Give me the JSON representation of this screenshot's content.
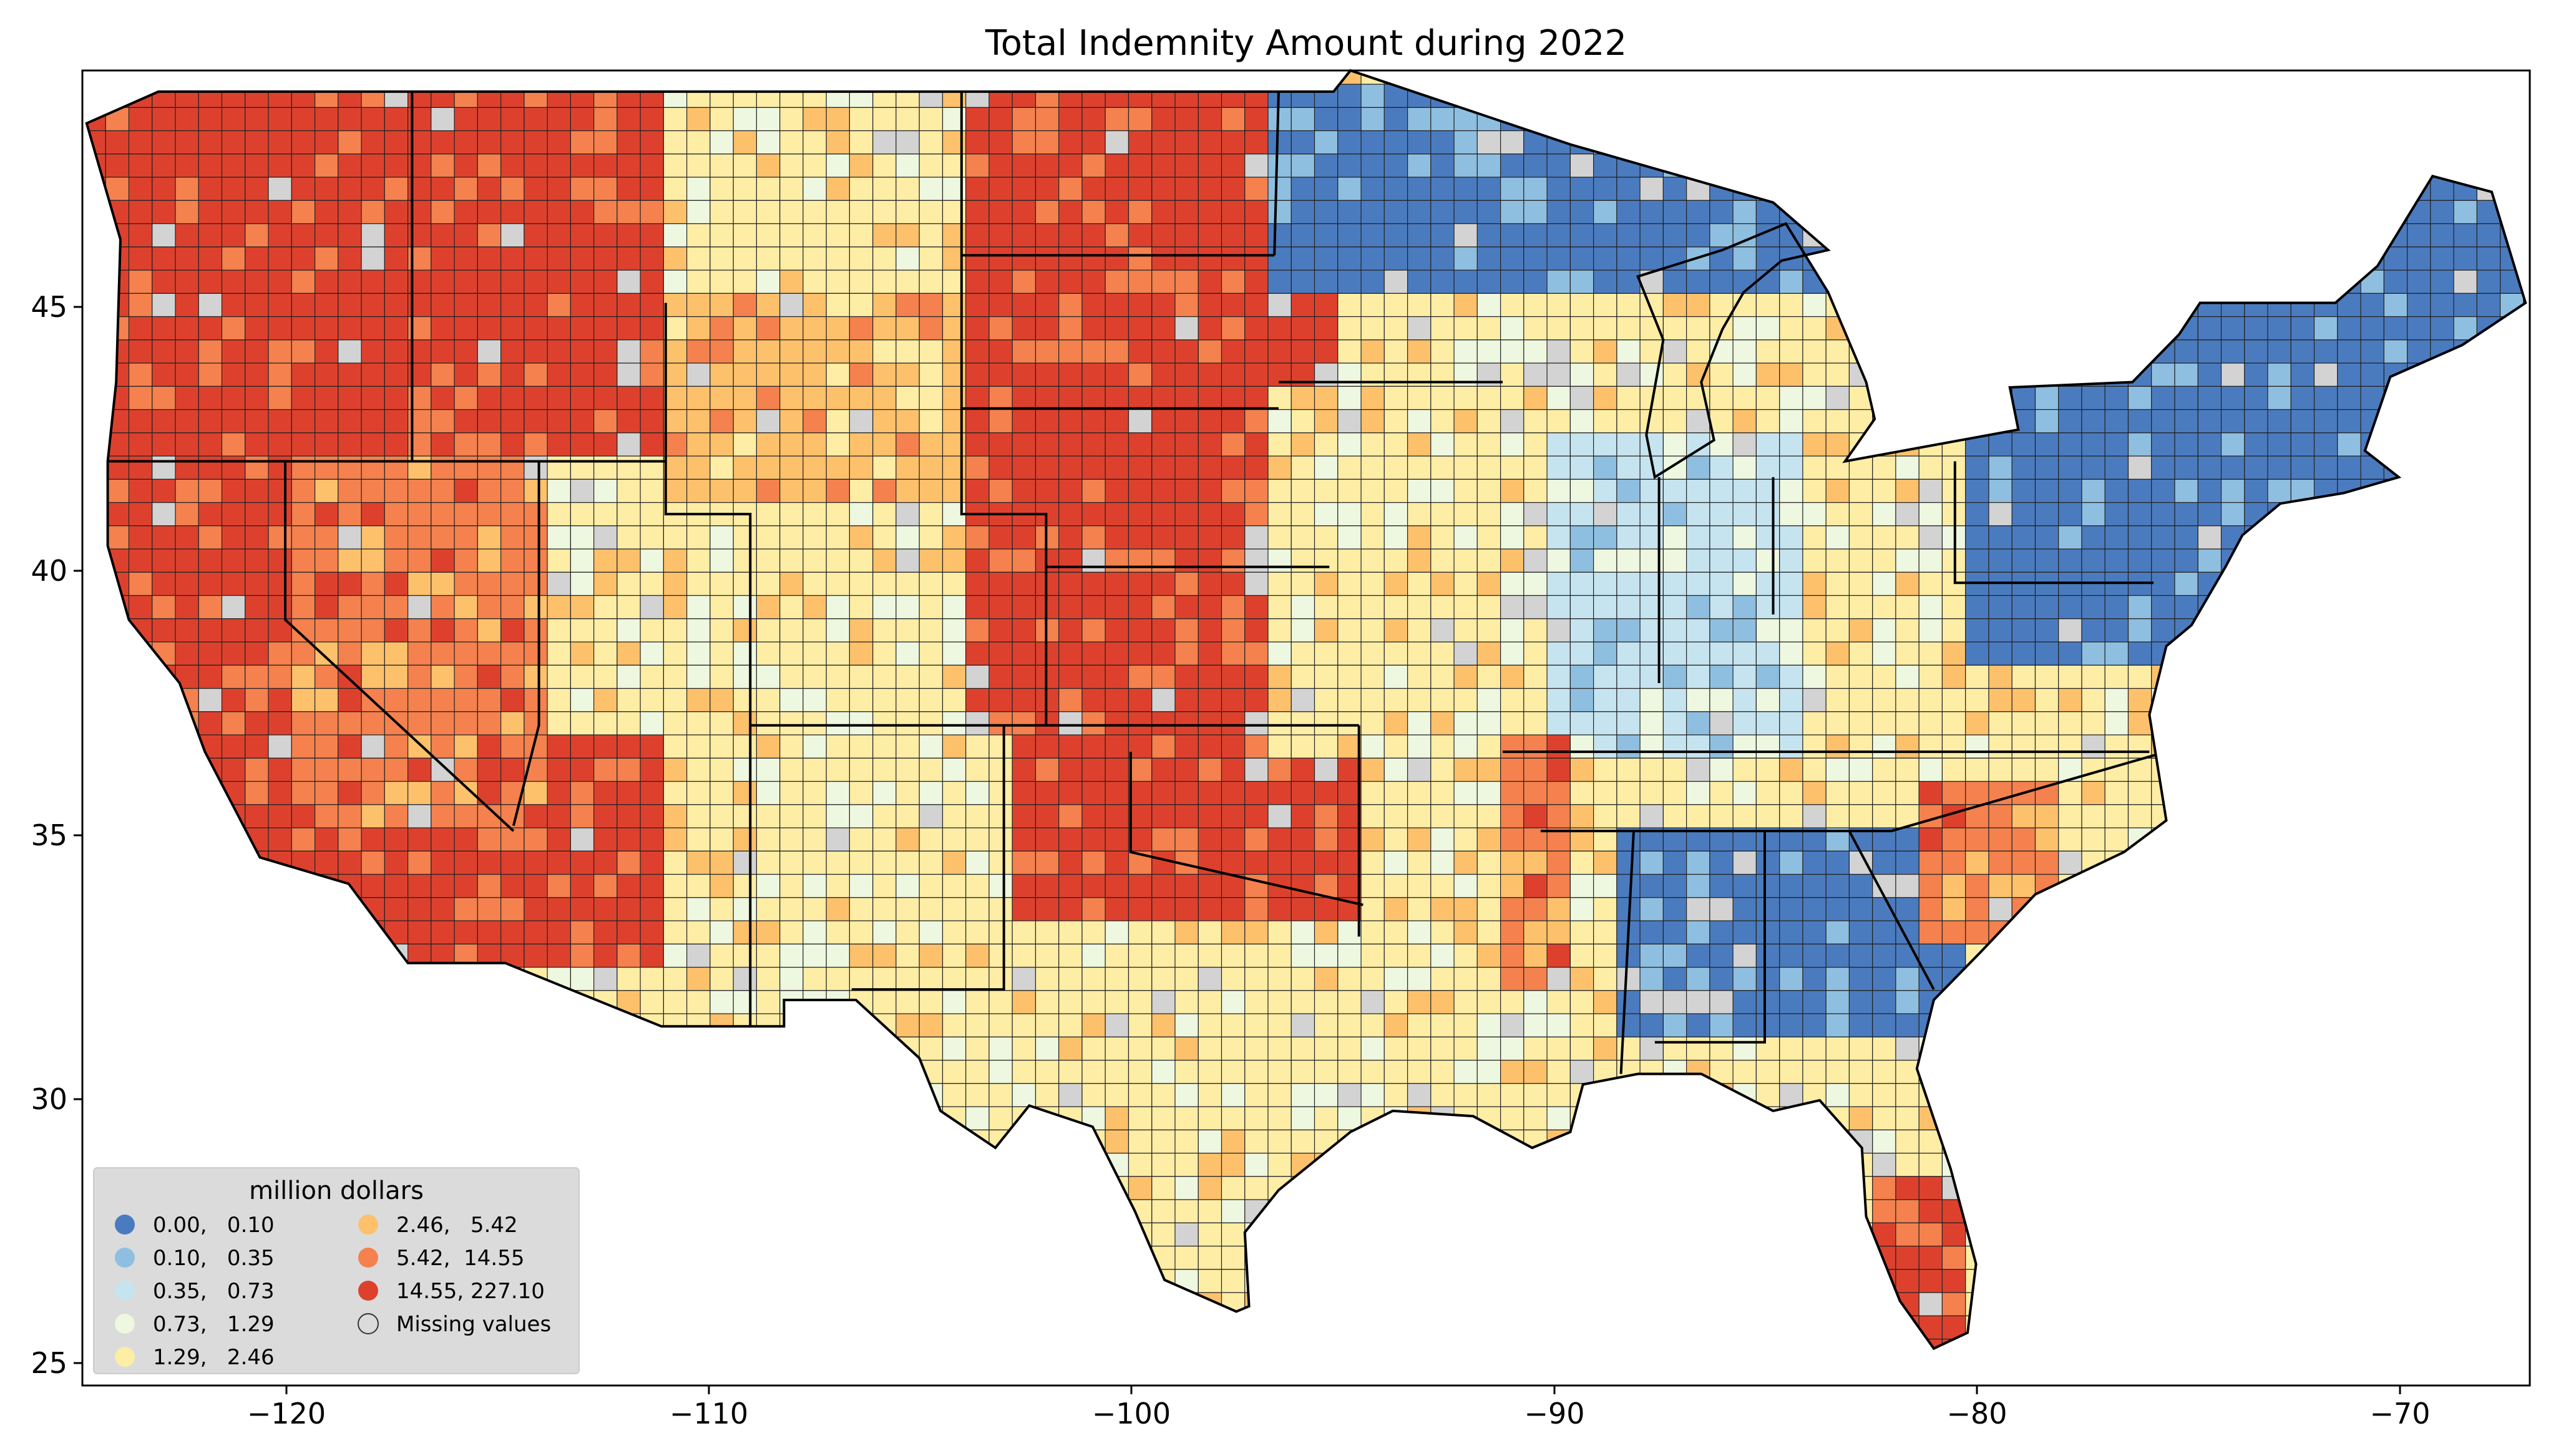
{
  "title": "Total Indemnity Amount during 2022",
  "axes": {
    "x_ticks": [
      "−120",
      "−110",
      "−100",
      "−90",
      "−80",
      "−70"
    ],
    "y_ticks": [
      "25",
      "30",
      "35",
      "40",
      "45"
    ]
  },
  "legend": {
    "title": "million dollars",
    "placement": "lower-left",
    "items": [
      {
        "label": "0.00,   0.10",
        "color": "#4b7bbf"
      },
      {
        "label": "0.10,   0.35",
        "color": "#8fbfe0"
      },
      {
        "label": "0.35,   0.73",
        "color": "#c6e4f0"
      },
      {
        "label": "0.73,   1.29",
        "color": "#eef7df"
      },
      {
        "label": "1.29,   2.46",
        "color": "#fdeda5"
      },
      {
        "label": "2.46,   5.42",
        "color": "#fdc16c"
      },
      {
        "label": "5.42,  14.55",
        "color": "#f4814e"
      },
      {
        "label": "14.55, 227.10",
        "color": "#dd412e"
      },
      {
        "label": "Missing values",
        "color": "#d3d3d3"
      }
    ]
  },
  "chart_data": {
    "type": "choropleth",
    "title": "Total Indemnity Amount during 2022",
    "xlim": [
      -124.8,
      -66.9
    ],
    "ylim": [
      24.5,
      49.4
    ],
    "x_ticks": [
      -120,
      -110,
      -100,
      -90,
      -80,
      -70
    ],
    "y_ticks": [
      25,
      30,
      35,
      40,
      45
    ],
    "legend_title": "million dollars",
    "bins": [
      {
        "min": 0.0,
        "max": 0.1,
        "color": "#4b7bbf"
      },
      {
        "min": 0.1,
        "max": 0.35,
        "color": "#8fbfe0"
      },
      {
        "min": 0.35,
        "max": 0.73,
        "color": "#c6e4f0"
      },
      {
        "min": 0.73,
        "max": 1.29,
        "color": "#eef7df"
      },
      {
        "min": 1.29,
        "max": 2.46,
        "color": "#fdeda5"
      },
      {
        "min": 2.46,
        "max": 5.42,
        "color": "#fdc16c"
      },
      {
        "min": 5.42,
        "max": 14.55,
        "color": "#f4814e"
      },
      {
        "min": 14.55,
        "max": 227.1,
        "color": "#dd412e"
      }
    ],
    "missing_color": "#d3d3d3",
    "regions": [
      {
        "lon": [
          -124.7,
          -111.0
        ],
        "lat": [
          32.5,
          49.0
        ],
        "color": "#dd412e"
      },
      {
        "lon": [
          -120.0,
          -114.0
        ],
        "lat": [
          35.0,
          42.0
        ],
        "color": "#f4814e"
      },
      {
        "lon": [
          -114.0,
          -104.0
        ],
        "lat": [
          37.0,
          42.0
        ],
        "color": "#fdeda5"
      },
      {
        "lon": [
          -111.0,
          -104.0
        ],
        "lat": [
          41.0,
          45.0
        ],
        "color": "#fdc16c"
      },
      {
        "lon": [
          -104.0,
          -95.0
        ],
        "lat": [
          37.0,
          49.0
        ],
        "color": "#dd412e"
      },
      {
        "lon": [
          -103.0,
          -94.5
        ],
        "lat": [
          33.5,
          37.0
        ],
        "color": "#dd412e"
      },
      {
        "lon": [
          -96.5,
          -90.0
        ],
        "lat": [
          36.5,
          43.5
        ],
        "color": "#fdeda5"
      },
      {
        "lon": [
          -97.0,
          -83.0
        ],
        "lat": [
          45.0,
          49.0
        ],
        "color": "#4b7bbf"
      },
      {
        "lon": [
          -90.0,
          -84.0
        ],
        "lat": [
          36.5,
          42.5
        ],
        "color": "#c6e4f0"
      },
      {
        "lon": [
          -91.5,
          -89.5
        ],
        "lat": [
          32.0,
          37.0
        ],
        "color": "#f4814e"
      },
      {
        "lon": [
          -88.5,
          -80.5
        ],
        "lat": [
          31.0,
          35.0
        ],
        "color": "#4b7bbf"
      },
      {
        "lon": [
          -81.5,
          -78.0
        ],
        "lat": [
          33.0,
          36.0
        ],
        "color": "#f4814e"
      },
      {
        "lon": [
          -82.5,
          -80.0
        ],
        "lat": [
          25.0,
          28.5
        ],
        "color": "#dd412e"
      },
      {
        "lon": [
          -80.0,
          -67.0
        ],
        "lat": [
          38.0,
          47.5
        ],
        "color": "#4b7bbf"
      }
    ]
  }
}
